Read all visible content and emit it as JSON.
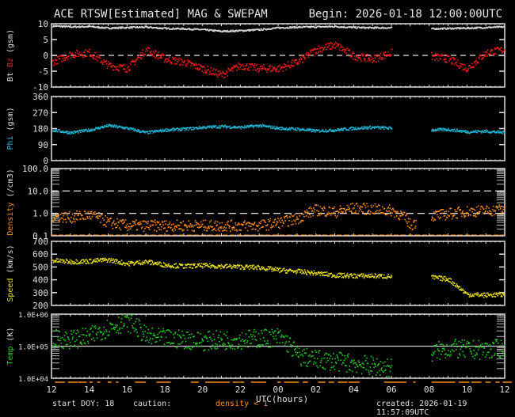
{
  "header": {
    "title": "ACE RTSW[Estimated] MAG & SWEPAM",
    "begin": "Begin: 2026-01-18 12:00:00UTC"
  },
  "footer": {
    "start_doy": "start DOY:  18",
    "caution": "caution:",
    "density_note": "density < 1",
    "xlabel": "UTC(hours)",
    "created": "created: 2026-01-19 11:57:09UTC"
  },
  "colors": {
    "bt": "#d8d8d8",
    "bz": "#ff1a1a",
    "phi": "#22b8d8",
    "density": "#ff8c1a",
    "speed": "#e8e020",
    "temp": "#22d022",
    "axis": "#e0e0e0",
    "caution_bar": "#b86a10"
  },
  "chart_data": [
    {
      "type": "scatter",
      "panel": "mag",
      "ylabel_parts": [
        "Bt",
        "Bz",
        "(gsm)"
      ],
      "yticks": [
        "10",
        "5",
        "0",
        "-5",
        "-10"
      ],
      "ylim": [
        -10,
        10
      ],
      "reference_line": 0,
      "x_hours": [
        12,
        13,
        14,
        15,
        16,
        17,
        18,
        19,
        20,
        21,
        22,
        23,
        24,
        25,
        26,
        27,
        28,
        29,
        30,
        31,
        32,
        33,
        34,
        35,
        36
      ],
      "series": [
        {
          "name": "Bt",
          "values": [
            9.5,
            9.2,
            9.3,
            8.8,
            9.0,
            9.1,
            8.7,
            8.6,
            8.3,
            7.8,
            8.0,
            8.3,
            8.9,
            9.1,
            9.2,
            9.3,
            9.0,
            8.9,
            8.9,
            null,
            8.6,
            8.7,
            8.8,
            9.0,
            9.2
          ]
        },
        {
          "name": "Bz",
          "values": [
            -2,
            0.5,
            1,
            -3,
            -4,
            2,
            -1,
            -2,
            -4,
            -6,
            -3,
            -4,
            -4,
            -2,
            2,
            3.5,
            0,
            -1,
            1,
            null,
            0,
            -1,
            -4,
            1,
            2
          ]
        }
      ]
    },
    {
      "type": "scatter",
      "panel": "phi",
      "ylabel": "Phi (gsm)",
      "yticks": [
        "360",
        "270",
        "180",
        "90",
        "0"
      ],
      "ylim": [
        0,
        360
      ],
      "x_hours": [
        12,
        13,
        14,
        15,
        16,
        17,
        18,
        19,
        20,
        21,
        22,
        23,
        24,
        25,
        26,
        27,
        28,
        29,
        30,
        31,
        32,
        33,
        34,
        35,
        36
      ],
      "values": [
        175,
        160,
        175,
        200,
        185,
        160,
        175,
        180,
        190,
        195,
        190,
        200,
        185,
        180,
        170,
        175,
        185,
        190,
        185,
        null,
        175,
        178,
        165,
        168,
        160
      ]
    },
    {
      "type": "scatter",
      "panel": "density",
      "ylabel": "Density (/cm3)",
      "yticks": [
        "100.0",
        "10.0",
        "1.0",
        "0.1"
      ],
      "yscale": "log",
      "ylim": [
        0.1,
        100
      ],
      "reference_lines": [
        10,
        1
      ],
      "x_hours": [
        12,
        13,
        14,
        15,
        16,
        17,
        18,
        19,
        20,
        21,
        22,
        23,
        24,
        25,
        26,
        27,
        28,
        29,
        30,
        31,
        32,
        33,
        34,
        35,
        36
      ],
      "values": [
        0.8,
        0.7,
        0.9,
        0.4,
        0.3,
        0.3,
        0.3,
        0.3,
        0.3,
        0.3,
        0.3,
        0.3,
        0.4,
        0.6,
        1.5,
        1.2,
        1.8,
        1.6,
        1.4,
        0.3,
        0.8,
        1.0,
        1.3,
        1.4,
        1.6
      ]
    },
    {
      "type": "scatter",
      "panel": "speed",
      "ylabel": "Speed (km/s)",
      "yticks": [
        "700",
        "600",
        "500",
        "400",
        "300",
        "200"
      ],
      "ylim": [
        200,
        700
      ],
      "x_hours": [
        12,
        13,
        14,
        15,
        16,
        17,
        18,
        19,
        20,
        21,
        22,
        23,
        24,
        25,
        26,
        27,
        28,
        29,
        30,
        31,
        32,
        33,
        34,
        35,
        36
      ],
      "values": [
        555,
        545,
        550,
        560,
        530,
        545,
        520,
        510,
        515,
        510,
        505,
        500,
        480,
        470,
        455,
        440,
        435,
        435,
        430,
        null,
        425,
        410,
        290,
        285,
        290
      ]
    },
    {
      "type": "scatter",
      "panel": "temp",
      "ylabel": "Temp (K)",
      "yticks": [
        "1.0E+06",
        "1.0E+05",
        "1.0E+04"
      ],
      "yscale": "log",
      "ylim": [
        10000,
        1000000
      ],
      "reference_line": 100000,
      "x_hours": [
        12,
        13,
        14,
        15,
        16,
        17,
        18,
        19,
        20,
        21,
        22,
        23,
        24,
        25,
        26,
        27,
        28,
        29,
        30,
        31,
        32,
        33,
        34,
        35,
        36
      ],
      "values": [
        180000,
        170000,
        200000,
        400000,
        600000,
        200000,
        180000,
        170000,
        150000,
        160000,
        170000,
        180000,
        200000,
        50000,
        40000,
        35000,
        30000,
        25000,
        22000,
        null,
        60000,
        90000,
        80000,
        80000,
        90000
      ]
    }
  ],
  "x_axis": {
    "label": "UTC(hours)",
    "ticks": [
      "12",
      "14",
      "16",
      "18",
      "20",
      "22",
      "00",
      "02",
      "04",
      "06",
      "08",
      "10",
      "12"
    ]
  }
}
